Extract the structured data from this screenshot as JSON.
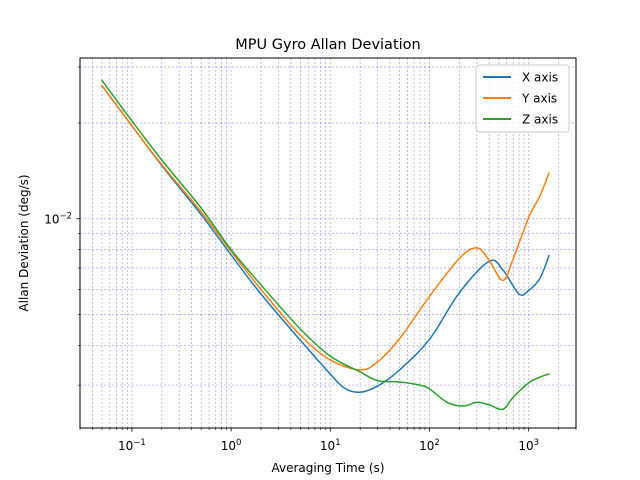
{
  "chart_data": {
    "type": "line",
    "title": "MPU Gyro Allan Deviation",
    "xlabel": "Averaging Time (s)",
    "ylabel": "Allan Deviation (deg/s)",
    "xscale": "log",
    "yscale": "log",
    "xlim": [
      0.03,
      3000
    ],
    "ylim": [
      0.0022,
      0.032
    ],
    "grid": "both",
    "legend": "top-right",
    "x_ticks": [
      {
        "value": 0.1,
        "base": "10",
        "exp": "−1"
      },
      {
        "value": 1,
        "base": "10",
        "exp": "0"
      },
      {
        "value": 10,
        "base": "10",
        "exp": "1"
      },
      {
        "value": 100,
        "base": "10",
        "exp": "2"
      },
      {
        "value": 1000,
        "base": "10",
        "exp": "3"
      }
    ],
    "y_ticks": [
      {
        "value": 0.01,
        "base": "10",
        "exp": "−2"
      }
    ],
    "series": [
      {
        "name": "X axis",
        "color": "#1f77b4",
        "x": [
          0.05,
          0.1,
          0.2,
          0.5,
          1,
          2,
          5,
          10,
          14,
          20,
          30,
          50,
          100,
          200,
          400,
          550,
          800,
          1000,
          1300,
          1600
        ],
        "y": [
          0.0262,
          0.0196,
          0.0147,
          0.0103,
          0.0077,
          0.0058,
          0.00415,
          0.00325,
          0.00293,
          0.00285,
          0.00298,
          0.00335,
          0.00418,
          0.00585,
          0.00735,
          0.0069,
          0.0058,
          0.00595,
          0.0065,
          0.00765
        ]
      },
      {
        "name": "Y axis",
        "color": "#ff7f0e",
        "x": [
          0.05,
          0.1,
          0.2,
          0.5,
          1,
          2,
          5,
          10,
          20,
          30,
          50,
          100,
          200,
          300,
          400,
          550,
          700,
          1000,
          1300,
          1600
        ],
        "y": [
          0.0262,
          0.0196,
          0.0148,
          0.0105,
          0.0079,
          0.006,
          0.0043,
          0.0036,
          0.00335,
          0.00355,
          0.0042,
          0.0057,
          0.0075,
          0.0081,
          0.0074,
          0.0064,
          0.0075,
          0.0101,
          0.0118,
          0.0139
        ]
      },
      {
        "name": "Z axis",
        "color": "#2ca02c",
        "x": [
          0.05,
          0.1,
          0.2,
          0.5,
          1,
          2,
          5,
          10,
          20,
          30,
          50,
          80,
          100,
          150,
          220,
          300,
          400,
          550,
          700,
          1000,
          1300,
          1600
        ],
        "y": [
          0.0272,
          0.0203,
          0.0153,
          0.0108,
          0.008,
          0.0062,
          0.0045,
          0.0037,
          0.0033,
          0.0031,
          0.00307,
          0.003,
          0.00292,
          0.00265,
          0.00258,
          0.00265,
          0.0026,
          0.00252,
          0.00275,
          0.00305,
          0.00318,
          0.00325
        ]
      }
    ]
  }
}
